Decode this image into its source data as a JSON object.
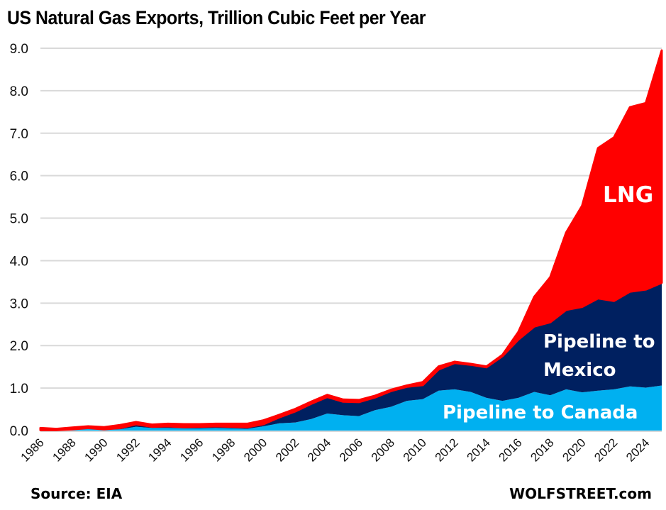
{
  "chart_data": {
    "type": "area",
    "stacked": true,
    "title": "US Natural Gas Exports, Trillion Cubic Feet per Year",
    "xlabel": "",
    "ylabel": "",
    "ylim": [
      0,
      9
    ],
    "yticks": [
      "0.0",
      "1.0",
      "2.0",
      "3.0",
      "4.0",
      "5.0",
      "6.0",
      "7.0",
      "8.0",
      "9.0"
    ],
    "grid": true,
    "x": [
      1986,
      1987,
      1988,
      1989,
      1990,
      1991,
      1992,
      1993,
      1994,
      1995,
      1996,
      1997,
      1998,
      1999,
      2000,
      2001,
      2002,
      2003,
      2004,
      2005,
      2006,
      2007,
      2008,
      2009,
      2010,
      2011,
      2012,
      2013,
      2014,
      2015,
      2016,
      2017,
      2018,
      2019,
      2020,
      2021,
      2022,
      2023,
      2024,
      2025
    ],
    "xticks": [
      "1986",
      "1988",
      "1990",
      "1992",
      "1994",
      "1996",
      "1998",
      "2000",
      "2002",
      "2004",
      "2006",
      "2008",
      "2010",
      "2012",
      "2014",
      "2016",
      "2018",
      "2020",
      "2022",
      "2024"
    ],
    "series": [
      {
        "name": "Pipeline to Canada",
        "color": "#00B0F0",
        "values": [
          0.01,
          0.0,
          0.02,
          0.04,
          0.02,
          0.03,
          0.09,
          0.06,
          0.06,
          0.05,
          0.05,
          0.06,
          0.05,
          0.04,
          0.1,
          0.17,
          0.19,
          0.27,
          0.4,
          0.36,
          0.34,
          0.48,
          0.56,
          0.7,
          0.74,
          0.94,
          0.97,
          0.91,
          0.77,
          0.7,
          0.77,
          0.91,
          0.83,
          0.97,
          0.9,
          0.94,
          0.97,
          1.04,
          1.01,
          1.06
        ]
      },
      {
        "name": "Pipeline to Mexico",
        "color": "#002060",
        "values": [
          0.0,
          0.01,
          0.01,
          0.02,
          0.01,
          0.03,
          0.06,
          0.03,
          0.04,
          0.03,
          0.04,
          0.04,
          0.04,
          0.04,
          0.05,
          0.14,
          0.26,
          0.36,
          0.39,
          0.32,
          0.33,
          0.3,
          0.37,
          0.33,
          0.33,
          0.5,
          0.62,
          0.64,
          0.72,
          1.05,
          1.37,
          1.54,
          1.72,
          1.87,
          2.01,
          2.17,
          2.08,
          2.23,
          2.31,
          2.42
        ]
      },
      {
        "name": "LNG",
        "color": "#FF0000",
        "values": [
          0.05,
          0.03,
          0.04,
          0.04,
          0.05,
          0.07,
          0.05,
          0.05,
          0.06,
          0.07,
          0.06,
          0.06,
          0.07,
          0.08,
          0.09,
          0.06,
          0.06,
          0.05,
          0.05,
          0.05,
          0.05,
          0.04,
          0.03,
          0.03,
          0.07,
          0.07,
          0.03,
          0.02,
          0.02,
          0.03,
          0.18,
          0.7,
          1.06,
          1.82,
          2.38,
          3.54,
          3.85,
          4.34,
          4.39,
          5.47
        ]
      }
    ],
    "annotations": [
      {
        "text": "LNG",
        "series": "LNG"
      },
      {
        "text": "Pipeline to",
        "series": "Pipeline to Mexico"
      },
      {
        "text": "Mexico",
        "series": "Pipeline to Mexico"
      },
      {
        "text": "Pipeline to Canada",
        "series": "Pipeline to Canada"
      }
    ],
    "source": "Source: EIA",
    "watermark": "WOLFSTREET.com"
  }
}
